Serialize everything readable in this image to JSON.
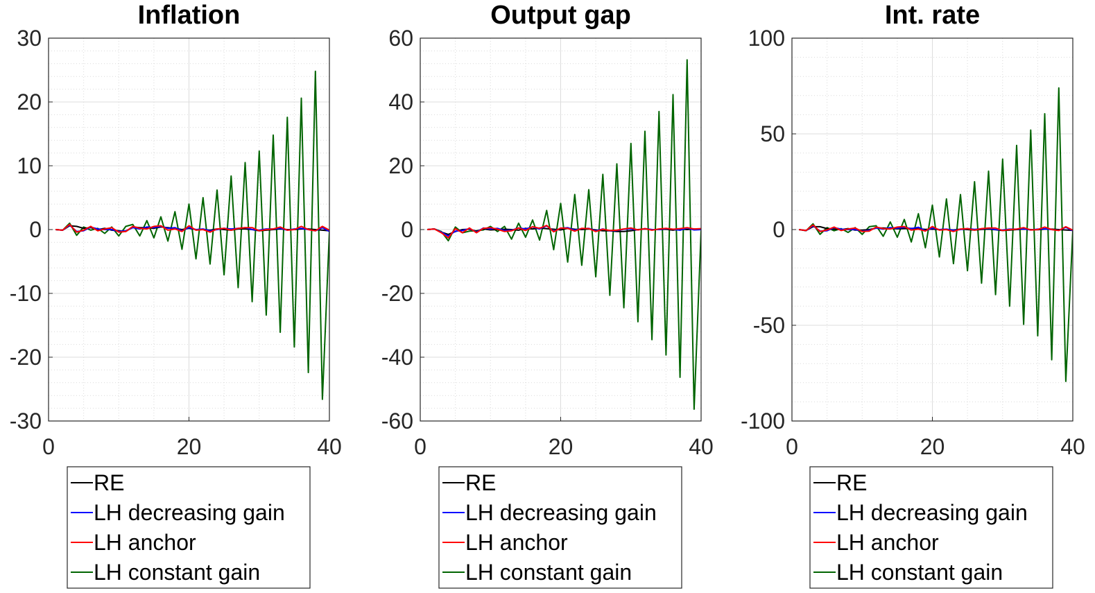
{
  "colors": {
    "RE": "#000000",
    "LH decreasing gain": "#0000ff",
    "LH anchor": "#ff0000",
    "LH constant gain": "#006400"
  },
  "legend": [
    "RE",
    "LH decreasing gain",
    "LH anchor",
    "LH constant gain"
  ],
  "chart_data": [
    {
      "type": "line",
      "title": "Inflation",
      "xlabel": "",
      "ylabel": "",
      "xlim": [
        0,
        40
      ],
      "ylim": [
        -30,
        30
      ],
      "xticks": [
        0,
        20,
        40
      ],
      "yticks": [
        30,
        20,
        10,
        0,
        -10,
        -20,
        -30
      ],
      "grid": true,
      "legend_position": "below",
      "x": [
        1,
        2,
        3,
        4,
        5,
        6,
        7,
        8,
        9,
        10,
        11,
        12,
        13,
        14,
        15,
        16,
        17,
        18,
        19,
        20,
        21,
        22,
        23,
        24,
        25,
        26,
        27,
        28,
        29,
        30,
        31,
        32,
        33,
        34,
        35,
        36,
        37,
        38,
        39,
        40
      ],
      "series": [
        {
          "name": "RE",
          "values": [
            0,
            -0.1,
            0.6,
            0.5,
            0.2,
            0.3,
            0,
            0.2,
            -0.1,
            -0.2,
            -0.3,
            0.4,
            0.3,
            0.3,
            0.2,
            0.4,
            0.3,
            0.2,
            0,
            0.2,
            0,
            0,
            -0.1,
            0.1,
            0,
            -0.1,
            0.1,
            0.1,
            0,
            -0.2,
            -0.1,
            0,
            0.1,
            0,
            0,
            0.1,
            0.1,
            0,
            -0.1,
            -0.2
          ]
        },
        {
          "name": "LH decreasing gain",
          "values": [
            0,
            -0.1,
            0.7,
            -0.3,
            -0.2,
            0.4,
            0.1,
            0,
            0,
            -0.3,
            -0.2,
            0.3,
            0.1,
            0.4,
            0.3,
            0.5,
            0.2,
            0.3,
            -0.2,
            0.3,
            0,
            0.1,
            -0.2,
            0,
            0.2,
            0.1,
            0.2,
            0.3,
            0,
            -0.1,
            0.1,
            0.1,
            0.2,
            -0.1,
            0.1,
            0.2,
            0,
            -0.2,
            0.3,
            -0.3
          ]
        },
        {
          "name": "LH anchor",
          "values": [
            0,
            -0.1,
            0.8,
            -0.4,
            -0.1,
            0.5,
            -0.2,
            0.1,
            0.3,
            -0.4,
            -0.3,
            0.5,
            0.2,
            0.1,
            0.5,
            0.6,
            -0.1,
            0.1,
            -0.3,
            0.6,
            -0.1,
            0,
            -0.4,
            0.1,
            0.2,
            -0.1,
            0.2,
            0.3,
            0.3,
            -0.2,
            0,
            0.1,
            0.4,
            -0.1,
            0,
            0.5,
            0,
            -0.2,
            0.5,
            -0.1
          ]
        },
        {
          "name": "LH constant gain",
          "values": [
            0,
            -0.1,
            1,
            -0.9,
            0.4,
            -0.1,
            0.2,
            -0.6,
            0.4,
            -1,
            0.5,
            0.8,
            -1,
            1.4,
            -1.3,
            2,
            -1.8,
            2.8,
            -3.1,
            4,
            -4.6,
            5,
            -5.4,
            6.2,
            -7.1,
            8.4,
            -9.1,
            10.5,
            -11.3,
            12.3,
            -13.4,
            14.8,
            -16.1,
            17.6,
            -18.4,
            20.6,
            -22.4,
            24.8,
            -26.6,
            -0.3
          ]
        }
      ]
    },
    {
      "type": "line",
      "title": "Output gap",
      "xlabel": "",
      "ylabel": "",
      "xlim": [
        0,
        40
      ],
      "ylim": [
        -60,
        60
      ],
      "xticks": [
        0,
        20,
        40
      ],
      "yticks": [
        60,
        40,
        20,
        0,
        -20,
        -40,
        -60
      ],
      "grid": true,
      "legend_position": "below",
      "x": [
        1,
        2,
        3,
        4,
        5,
        6,
        7,
        8,
        9,
        10,
        11,
        12,
        13,
        14,
        15,
        16,
        17,
        18,
        19,
        20,
        21,
        22,
        23,
        24,
        25,
        26,
        27,
        28,
        29,
        30,
        31,
        32,
        33,
        34,
        35,
        36,
        37,
        38,
        39,
        40
      ],
      "series": [
        {
          "name": "RE",
          "values": [
            0,
            0.2,
            -0.8,
            -1.5,
            -0.6,
            0,
            0.1,
            -0.5,
            0.2,
            -0.1,
            0,
            0.1,
            0,
            -0.2,
            0.4,
            0.2,
            0.5,
            0.3,
            0.1,
            -0.1,
            0.4,
            0.1,
            0,
            0.2,
            -0.1,
            -0.4,
            -0.4,
            -0.6,
            -0.6,
            -0.4,
            0,
            0.2,
            0,
            0,
            0.1,
            -0.2,
            0.2,
            0,
            0.2,
            0
          ]
        },
        {
          "name": "LH decreasing gain",
          "values": [
            0,
            0.2,
            -0.8,
            -2,
            -0.5,
            -0.3,
            0.3,
            -0.8,
            0.5,
            0.2,
            0.4,
            -0.3,
            -0.2,
            0.5,
            0.2,
            0.8,
            0.2,
            1.2,
            -0.5,
            0.4,
            0.6,
            -0.2,
            0.3,
            0.4,
            -0.4,
            0.2,
            -0.4,
            -0.3,
            0.1,
            0.2,
            -0.1,
            0.3,
            0,
            0,
            0.3,
            0.1,
            -0.2,
            0.5,
            -0.1,
            0
          ]
        },
        {
          "name": "LH anchor",
          "values": [
            0,
            0.2,
            -1,
            -2.6,
            0.3,
            -1,
            0.5,
            -1,
            0.4,
            0.6,
            0.1,
            -0.6,
            -0.4,
            0.5,
            -0.3,
            0.9,
            0.4,
            1.3,
            -0.7,
            0.5,
            0.4,
            -0.5,
            0.4,
            0.3,
            -0.6,
            0.1,
            -0.3,
            -0.2,
            0.2,
            0.5,
            -0.1,
            0.3,
            -0.2,
            0.2,
            0.4,
            0.1,
            0.3,
            0.6,
            0.2,
            0.3
          ]
        },
        {
          "name": "LH constant gain",
          "values": [
            0,
            0.2,
            -0.6,
            -3.5,
            0.8,
            -1,
            -0.5,
            -0.4,
            -0.1,
            1,
            -0.6,
            1,
            -3,
            2,
            -2.4,
            3,
            -3.3,
            6,
            -6.3,
            8.2,
            -10.2,
            11,
            -11.2,
            12.5,
            -14.8,
            17.3,
            -20.6,
            20.6,
            -24.5,
            27,
            -28.9,
            30.8,
            -34.5,
            37,
            -39.3,
            42.3,
            -46.3,
            53.2,
            -56.3,
            -0.3
          ]
        }
      ]
    },
    {
      "type": "line",
      "title": "Int. rate",
      "xlabel": "",
      "ylabel": "",
      "xlim": [
        0,
        40
      ],
      "ylim": [
        -100,
        100
      ],
      "xticks": [
        0,
        20,
        40
      ],
      "yticks": [
        100,
        50,
        0,
        -50,
        -100
      ],
      "grid": true,
      "legend_position": "below",
      "x": [
        1,
        2,
        3,
        4,
        5,
        6,
        7,
        8,
        9,
        10,
        11,
        12,
        13,
        14,
        15,
        16,
        17,
        18,
        19,
        20,
        21,
        22,
        23,
        24,
        25,
        26,
        27,
        28,
        29,
        30,
        31,
        32,
        33,
        34,
        35,
        36,
        37,
        38,
        39,
        40
      ],
      "series": [
        {
          "name": "RE",
          "values": [
            0,
            -0.5,
            1.5,
            1.5,
            0.5,
            0.2,
            0,
            0.5,
            -0.3,
            -0.3,
            0,
            0.8,
            0.8,
            0.6,
            0.4,
            0.5,
            0.6,
            0.4,
            0.1,
            0.2,
            0,
            0.1,
            -0.2,
            0.2,
            0,
            -0.3,
            0.1,
            0.2,
            -0.1,
            -0.5,
            -0.3,
            0,
            0.2,
            0,
            -0.1,
            0.2,
            0.2,
            0,
            -0.2,
            -0.4
          ]
        },
        {
          "name": "LH decreasing gain",
          "values": [
            0,
            -0.5,
            2,
            -0.8,
            -0.6,
            1,
            0.2,
            0,
            0,
            -0.8,
            -0.4,
            0.9,
            0.2,
            1,
            0.7,
            1.2,
            0.5,
            1.2,
            -0.6,
            0.8,
            0,
            0.2,
            -0.4,
            0,
            0.5,
            0.1,
            0.4,
            0.6,
            0,
            -0.2,
            0.2,
            0.2,
            0.4,
            -0.2,
            0.2,
            0.4,
            0,
            -0.4,
            1.2,
            -0.6
          ]
        },
        {
          "name": "LH anchor",
          "values": [
            0,
            -0.5,
            2.4,
            -1,
            -0.2,
            1.3,
            -0.5,
            0.3,
            0.8,
            -1,
            -0.8,
            1.3,
            0.5,
            0.3,
            1.3,
            1.6,
            -0.3,
            0.2,
            -0.8,
            1.6,
            -0.3,
            0,
            -1,
            0.3,
            0.5,
            -0.3,
            0.5,
            0.8,
            0.8,
            -0.5,
            0,
            0.2,
            1,
            -0.2,
            0,
            1.3,
            0,
            -0.5,
            1.5,
            -0.3
          ]
        },
        {
          "name": "LH constant gain",
          "values": [
            0,
            -0.6,
            3,
            -2.5,
            1,
            -0.6,
            0.5,
            -1.5,
            1,
            -2.5,
            1.5,
            2,
            -3.5,
            4,
            -4,
            5.3,
            -6.5,
            8.3,
            -9.5,
            12.8,
            -14.3,
            16,
            -17.8,
            18.3,
            -21.5,
            25,
            -28,
            30.5,
            -34,
            36.8,
            -40,
            44,
            -49.5,
            52,
            -55.5,
            60.5,
            -68,
            74,
            -79.3,
            -0.5
          ]
        }
      ]
    }
  ]
}
